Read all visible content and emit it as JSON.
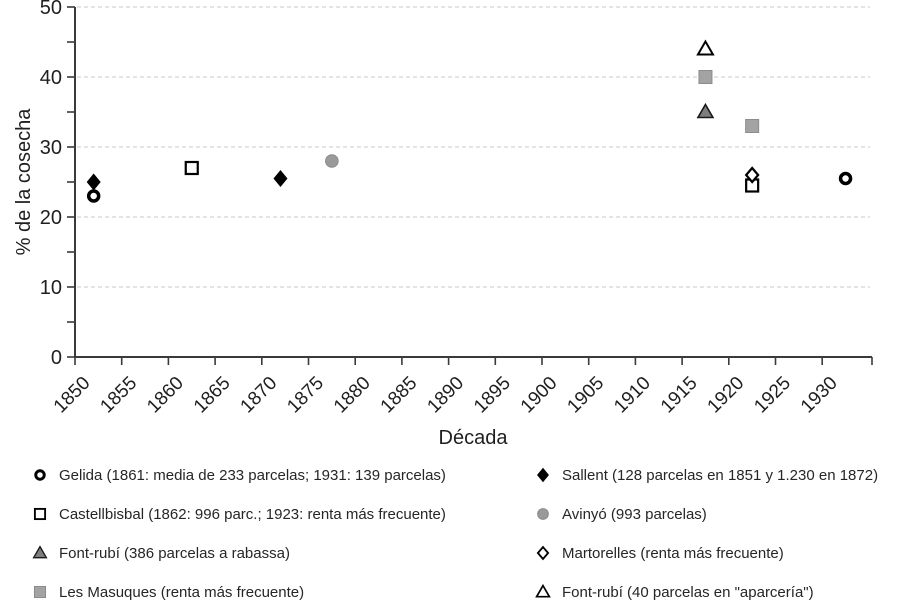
{
  "chart_data": {
    "type": "scatter",
    "title": "",
    "xlabel": "Década",
    "ylabel": "% de la cosecha",
    "xlim": [
      1850,
      1935
    ],
    "ylim": [
      0,
      50
    ],
    "grid": "horizontal-dashed",
    "legend_position": "bottom-two-columns",
    "x_ticks": [
      1850,
      1855,
      1860,
      1865,
      1870,
      1875,
      1880,
      1885,
      1890,
      1895,
      1900,
      1905,
      1910,
      1915,
      1920,
      1925,
      1930
    ],
    "x_tick_labels": [
      "1850",
      "1855",
      "1860",
      "1865",
      "1870",
      "1875",
      "1880",
      "1885",
      "1890",
      "1895",
      "1900",
      "1905",
      "1910",
      "1915",
      "1920",
      "1925",
      "1930"
    ],
    "y_ticks": [
      0,
      10,
      20,
      30,
      40,
      50
    ],
    "y_tick_labels": [
      "0",
      "10",
      "20",
      "30",
      "40",
      "50"
    ],
    "y_minor_tick_step": 5,
    "series": [
      {
        "key": "gelida",
        "name": "Gelida",
        "marker": "open-circle",
        "color": "#000000",
        "fill": "#ffffff",
        "points": [
          {
            "x": 1852,
            "y": 23
          },
          {
            "x": 1932.5,
            "y": 25.5
          }
        ]
      },
      {
        "key": "castellbisbal",
        "name": "Castellbisbal",
        "marker": "open-square",
        "color": "#000000",
        "fill": "#ffffff",
        "points": [
          {
            "x": 1862.5,
            "y": 27
          },
          {
            "x": 1922.5,
            "y": 24.5
          }
        ]
      },
      {
        "key": "font-rubi-rabassa",
        "name": "Font-rubí (rabassa)",
        "marker": "filled-triangle",
        "color": "#1a1a1a",
        "fill": "#7d7d7d",
        "points": [
          {
            "x": 1917.5,
            "y": 35
          }
        ]
      },
      {
        "key": "les-masuques",
        "name": "Les Masuques",
        "marker": "filled-square",
        "color": "#8c8c8c",
        "fill": "#a3a3a3",
        "points": [
          {
            "x": 1917.5,
            "y": 40
          },
          {
            "x": 1922.5,
            "y": 33
          }
        ]
      },
      {
        "key": "sallent",
        "name": "Sallent",
        "marker": "filled-diamond",
        "color": "#000000",
        "fill": "#000000",
        "points": [
          {
            "x": 1852,
            "y": 25
          },
          {
            "x": 1872,
            "y": 25.5
          }
        ]
      },
      {
        "key": "avinyo",
        "name": "Avinyó",
        "marker": "filled-circle",
        "color": "#8a8a8a",
        "fill": "#9a9a9a",
        "points": [
          {
            "x": 1877.5,
            "y": 28
          }
        ]
      },
      {
        "key": "martorelles",
        "name": "Martorelles",
        "marker": "open-diamond",
        "color": "#000000",
        "fill": "#ffffff",
        "points": [
          {
            "x": 1922.5,
            "y": 26
          }
        ]
      },
      {
        "key": "font-rubi-aparceria",
        "name": "Font-rubí (aparcería)",
        "marker": "open-triangle",
        "color": "#000000",
        "fill": "#ffffff",
        "points": [
          {
            "x": 1917.5,
            "y": 44
          }
        ]
      }
    ]
  },
  "legend": {
    "columns": [
      {
        "items": [
          {
            "series": "gelida",
            "marker": "open-circle",
            "label": "Gelida (1861: media de 233 parcelas; 1931: 139 parcelas)"
          },
          {
            "series": "castellbisbal",
            "marker": "open-square",
            "label": "Castellbisbal (1862: 996 parc.; 1923: renta más frecuente)"
          },
          {
            "series": "font-rubi-rabassa",
            "marker": "filled-triangle",
            "label": "Font-rubí (386 parcelas a rabassa)"
          },
          {
            "series": "les-masuques",
            "marker": "filled-square",
            "label": "Les Masuques (renta más frecuente)"
          }
        ]
      },
      {
        "items": [
          {
            "series": "sallent",
            "marker": "filled-diamond",
            "label": "Sallent (128 parcelas en 1851 y 1.230 en 1872)"
          },
          {
            "series": "avinyo",
            "marker": "filled-circle",
            "label": "Avinyó (993 parcelas)"
          },
          {
            "series": "martorelles",
            "marker": "open-diamond",
            "label": "Martorelles (renta más frecuente)"
          },
          {
            "series": "font-rubi-aparceria",
            "marker": "open-triangle",
            "label": "Font-rubí (40 parcelas en \"aparcería\")"
          }
        ]
      }
    ]
  },
  "colors": {
    "axis": "#3a3a3a",
    "gridline": "#c8c8c8",
    "text": "#1f1f1f",
    "gray_fill": "#a3a3a3",
    "dark_gray_fill": "#7d7d7d",
    "black": "#000000",
    "white": "#ffffff"
  }
}
